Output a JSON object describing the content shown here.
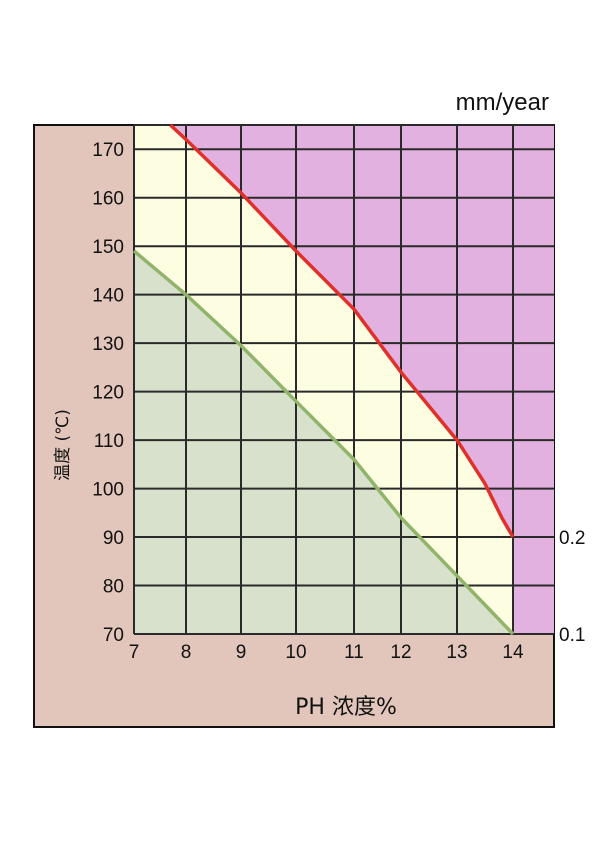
{
  "chart_data": {
    "type": "area",
    "unit_label": "mm/year",
    "xlabel": "PH 浓度%",
    "ylabel": "温度 (℃)",
    "xlim": [
      7,
      15
    ],
    "ylim": [
      70,
      175
    ],
    "x_ticks": [
      7,
      8,
      9,
      10,
      11,
      12,
      13,
      14
    ],
    "x_tick_labels": [
      "7",
      "8",
      "9",
      "10",
      "11",
      "12",
      "13",
      "14"
    ],
    "y_ticks": [
      70,
      80,
      90,
      100,
      110,
      120,
      130,
      140,
      150,
      160,
      170
    ],
    "y_tick_labels": [
      "70",
      "80",
      "90",
      "100",
      "110",
      "120",
      "130",
      "140",
      "150",
      "160",
      "170"
    ],
    "grid": true,
    "series": [
      {
        "name": "0.1",
        "color": "#8fb46a",
        "points": [
          [
            7,
            149
          ],
          [
            8,
            140
          ],
          [
            9,
            129.5
          ],
          [
            10,
            118
          ],
          [
            11,
            106
          ],
          [
            12,
            94
          ],
          [
            13,
            82
          ],
          [
            13.5,
            76
          ],
          [
            14,
            70
          ]
        ]
      },
      {
        "name": "0.2",
        "color": "#e0302a",
        "points": [
          [
            7.7,
            175
          ],
          [
            8,
            172
          ],
          [
            9,
            161
          ],
          [
            10,
            149
          ],
          [
            11,
            137
          ],
          [
            12,
            124
          ],
          [
            13,
            110
          ],
          [
            13.5,
            101
          ],
          [
            13.8,
            94
          ],
          [
            14,
            90
          ]
        ]
      }
    ],
    "colors": {
      "background": "#e2c6bb",
      "region_low": "#d8e1cb",
      "region_mid": "#fdfde1",
      "region_high": "#e2b1df",
      "grid": "#2a2a2a"
    }
  }
}
